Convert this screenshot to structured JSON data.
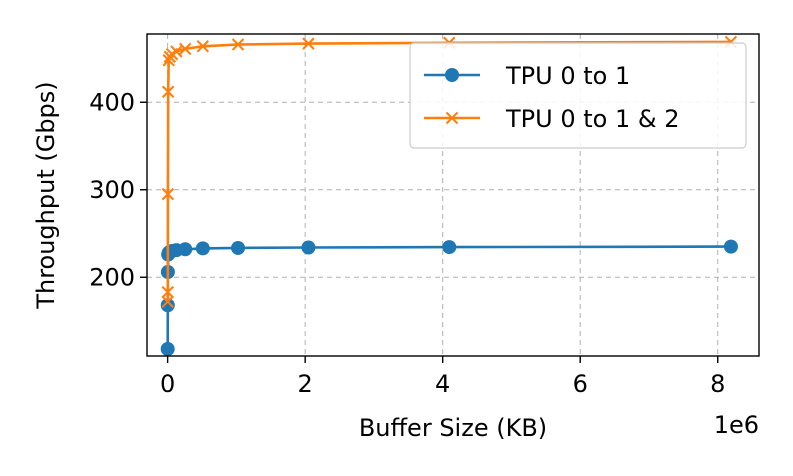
{
  "chart_data": {
    "type": "line",
    "xlabel": "Buffer Size (KB)",
    "ylabel": "Throughput (Gbps)",
    "x_offset_label": "1e6",
    "x_scale": 1000000,
    "xlim": [
      -300000,
      8600000
    ],
    "ylim": [
      110,
      478
    ],
    "x_ticks": [
      0,
      2000000,
      4000000,
      6000000,
      8000000
    ],
    "x_tick_labels": [
      "0",
      "2",
      "4",
      "6",
      "8"
    ],
    "y_ticks": [
      200,
      300,
      400
    ],
    "y_tick_labels": [
      "200",
      "300",
      "400"
    ],
    "grid": true,
    "legend_position": "upper-right",
    "series": [
      {
        "name": "TPU 0 to 1",
        "color": "#1f77b4",
        "marker": "circle",
        "x": [
          1000,
          2000,
          4000,
          8000,
          16000,
          32000,
          64000,
          128000,
          256000,
          512000,
          1024000,
          2048000,
          4096000,
          8192000
        ],
        "y": [
          118,
          168,
          206,
          226,
          228,
          229,
          230,
          231,
          232,
          233,
          233.5,
          234,
          234.5,
          235
        ]
      },
      {
        "name": "TPU 0 to 1 & 2",
        "color": "#ff7f0e",
        "marker": "x",
        "x": [
          1000,
          2000,
          4000,
          8000,
          16000,
          32000,
          64000,
          128000,
          256000,
          512000,
          1024000,
          2048000,
          4096000,
          8192000
        ],
        "y": [
          172,
          183,
          295,
          412,
          448,
          452,
          455,
          458,
          461,
          464,
          466,
          467,
          468,
          469
        ]
      }
    ]
  }
}
